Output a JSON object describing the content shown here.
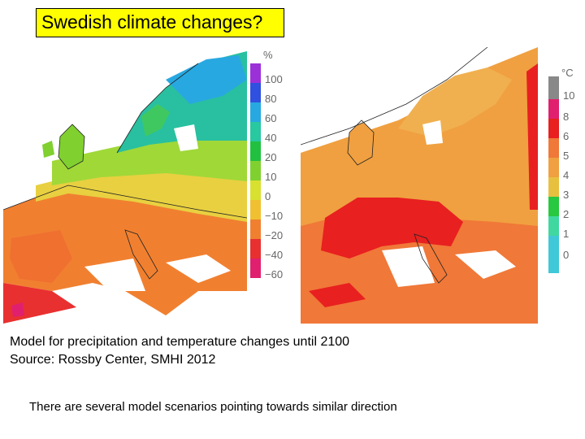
{
  "title": "Swedish climate changes?",
  "caption": {
    "line1": "Model for precipitation and temperature changes until 2100",
    "line2": "Source: Rossby Center, SMHI 2012"
  },
  "note": "There are several model scenarios pointing towards similar direction",
  "precipitation_scale": {
    "unit": "%",
    "labels": [
      "100",
      "80",
      "60",
      "40",
      "20",
      "10",
      "0",
      "−10",
      "−20",
      "−40",
      "−60"
    ],
    "colors": [
      "#9b30d9",
      "#3050e0",
      "#28a8e0",
      "#28c8a0",
      "#22c040",
      "#80d030",
      "#d8e030",
      "#f0c030",
      "#f08030",
      "#e83030",
      "#e0206e"
    ]
  },
  "temperature_scale": {
    "unit": "°C",
    "labels": [
      "10",
      "8",
      "6",
      "5",
      "4",
      "3",
      "2",
      "1",
      "0"
    ],
    "colors": [
      "#888888",
      "#e0206e",
      "#e82020",
      "#f07838",
      "#f0a040",
      "#e8c040",
      "#28c840",
      "#40d8a0",
      "#40c8d8"
    ]
  }
}
